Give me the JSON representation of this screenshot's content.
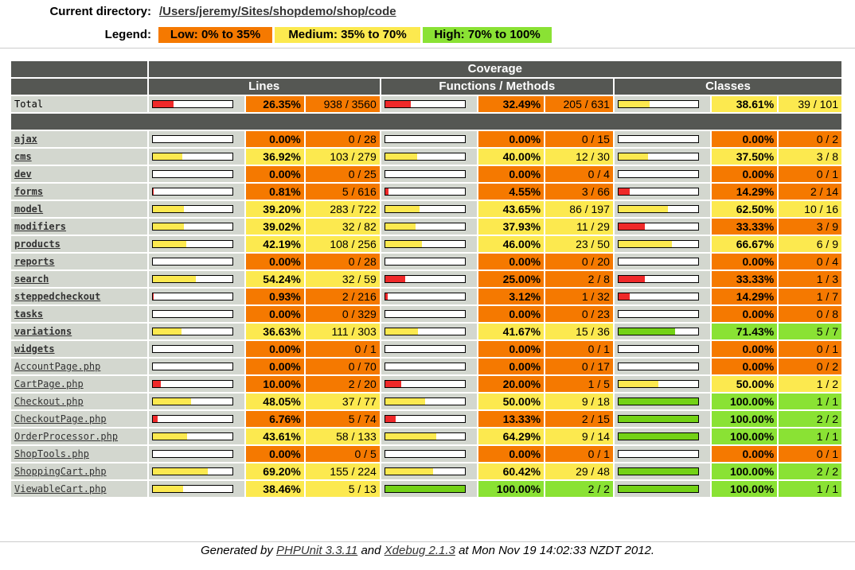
{
  "header": {
    "dir_label": "Current directory:",
    "dir_path": "/Users/jeremy/Sites/shopdemo/shop/code",
    "legend_label": "Legend:",
    "legend": [
      {
        "label": "Low: 0% to 35%",
        "level": "low"
      },
      {
        "label": "Medium: 35% to 70%",
        "level": "med"
      },
      {
        "label": "High: 70% to 100%",
        "level": "high"
      }
    ]
  },
  "columns": {
    "coverage": "Coverage",
    "lines": "Lines",
    "functions": "Functions / Methods",
    "classes": "Classes"
  },
  "colors": {
    "low": "#f57900",
    "medium": "#fce94f",
    "high": "#8ae234",
    "header": "#555753",
    "neutral": "#d3d7cf"
  },
  "total": {
    "name": "Total",
    "lines": {
      "pct": "26.35%",
      "count": "938 / 3560",
      "ratio": 0.2635
    },
    "functions": {
      "pct": "32.49%",
      "count": "205 / 631",
      "ratio": 0.3249
    },
    "classes": {
      "pct": "38.61%",
      "count": "39 / 101",
      "ratio": 0.3861
    }
  },
  "rows": [
    {
      "name": "ajax",
      "type": "dir",
      "lines": {
        "pct": "0.00%",
        "count": "0 / 28",
        "ratio": 0
      },
      "functions": {
        "pct": "0.00%",
        "count": "0 / 15",
        "ratio": 0
      },
      "classes": {
        "pct": "0.00%",
        "count": "0 / 2",
        "ratio": 0
      }
    },
    {
      "name": "cms",
      "type": "dir",
      "lines": {
        "pct": "36.92%",
        "count": "103 / 279",
        "ratio": 0.3692
      },
      "functions": {
        "pct": "40.00%",
        "count": "12 / 30",
        "ratio": 0.4
      },
      "classes": {
        "pct": "37.50%",
        "count": "3 / 8",
        "ratio": 0.375
      }
    },
    {
      "name": "dev",
      "type": "dir",
      "lines": {
        "pct": "0.00%",
        "count": "0 / 25",
        "ratio": 0
      },
      "functions": {
        "pct": "0.00%",
        "count": "0 / 4",
        "ratio": 0
      },
      "classes": {
        "pct": "0.00%",
        "count": "0 / 1",
        "ratio": 0
      }
    },
    {
      "name": "forms",
      "type": "dir",
      "lines": {
        "pct": "0.81%",
        "count": "5 / 616",
        "ratio": 0.0081
      },
      "functions": {
        "pct": "4.55%",
        "count": "3 / 66",
        "ratio": 0.0455
      },
      "classes": {
        "pct": "14.29%",
        "count": "2 / 14",
        "ratio": 0.1429
      }
    },
    {
      "name": "model",
      "type": "dir",
      "lines": {
        "pct": "39.20%",
        "count": "283 / 722",
        "ratio": 0.392
      },
      "functions": {
        "pct": "43.65%",
        "count": "86 / 197",
        "ratio": 0.4365
      },
      "classes": {
        "pct": "62.50%",
        "count": "10 / 16",
        "ratio": 0.625
      }
    },
    {
      "name": "modifiers",
      "type": "dir",
      "lines": {
        "pct": "39.02%",
        "count": "32 / 82",
        "ratio": 0.3902
      },
      "functions": {
        "pct": "37.93%",
        "count": "11 / 29",
        "ratio": 0.3793
      },
      "classes": {
        "pct": "33.33%",
        "count": "3 / 9",
        "ratio": 0.3333
      }
    },
    {
      "name": "products",
      "type": "dir",
      "lines": {
        "pct": "42.19%",
        "count": "108 / 256",
        "ratio": 0.4219
      },
      "functions": {
        "pct": "46.00%",
        "count": "23 / 50",
        "ratio": 0.46
      },
      "classes": {
        "pct": "66.67%",
        "count": "6 / 9",
        "ratio": 0.6667
      }
    },
    {
      "name": "reports",
      "type": "dir",
      "lines": {
        "pct": "0.00%",
        "count": "0 / 28",
        "ratio": 0
      },
      "functions": {
        "pct": "0.00%",
        "count": "0 / 20",
        "ratio": 0
      },
      "classes": {
        "pct": "0.00%",
        "count": "0 / 4",
        "ratio": 0
      }
    },
    {
      "name": "search",
      "type": "dir",
      "lines": {
        "pct": "54.24%",
        "count": "32 / 59",
        "ratio": 0.5424
      },
      "functions": {
        "pct": "25.00%",
        "count": "2 / 8",
        "ratio": 0.25
      },
      "classes": {
        "pct": "33.33%",
        "count": "1 / 3",
        "ratio": 0.3333
      }
    },
    {
      "name": "steppedcheckout",
      "type": "dir",
      "lines": {
        "pct": "0.93%",
        "count": "2 / 216",
        "ratio": 0.0093
      },
      "functions": {
        "pct": "3.12%",
        "count": "1 / 32",
        "ratio": 0.0312
      },
      "classes": {
        "pct": "14.29%",
        "count": "1 / 7",
        "ratio": 0.1429
      }
    },
    {
      "name": "tasks",
      "type": "dir",
      "lines": {
        "pct": "0.00%",
        "count": "0 / 329",
        "ratio": 0
      },
      "functions": {
        "pct": "0.00%",
        "count": "0 / 23",
        "ratio": 0
      },
      "classes": {
        "pct": "0.00%",
        "count": "0 / 8",
        "ratio": 0
      }
    },
    {
      "name": "variations",
      "type": "dir",
      "lines": {
        "pct": "36.63%",
        "count": "111 / 303",
        "ratio": 0.3663
      },
      "functions": {
        "pct": "41.67%",
        "count": "15 / 36",
        "ratio": 0.4167
      },
      "classes": {
        "pct": "71.43%",
        "count": "5 / 7",
        "ratio": 0.7143
      }
    },
    {
      "name": "widgets",
      "type": "dir",
      "lines": {
        "pct": "0.00%",
        "count": "0 / 1",
        "ratio": 0
      },
      "functions": {
        "pct": "0.00%",
        "count": "0 / 1",
        "ratio": 0
      },
      "classes": {
        "pct": "0.00%",
        "count": "0 / 1",
        "ratio": 0
      }
    },
    {
      "name": "AccountPage.php",
      "type": "file",
      "lines": {
        "pct": "0.00%",
        "count": "0 / 70",
        "ratio": 0
      },
      "functions": {
        "pct": "0.00%",
        "count": "0 / 17",
        "ratio": 0
      },
      "classes": {
        "pct": "0.00%",
        "count": "0 / 2",
        "ratio": 0
      }
    },
    {
      "name": "CartPage.php",
      "type": "file",
      "lines": {
        "pct": "10.00%",
        "count": "2 / 20",
        "ratio": 0.1
      },
      "functions": {
        "pct": "20.00%",
        "count": "1 / 5",
        "ratio": 0.2
      },
      "classes": {
        "pct": "50.00%",
        "count": "1 / 2",
        "ratio": 0.5
      }
    },
    {
      "name": "Checkout.php",
      "type": "file",
      "lines": {
        "pct": "48.05%",
        "count": "37 / 77",
        "ratio": 0.4805
      },
      "functions": {
        "pct": "50.00%",
        "count": "9 / 18",
        "ratio": 0.5
      },
      "classes": {
        "pct": "100.00%",
        "count": "1 / 1",
        "ratio": 1
      }
    },
    {
      "name": "CheckoutPage.php",
      "type": "file",
      "lines": {
        "pct": "6.76%",
        "count": "5 / 74",
        "ratio": 0.0676
      },
      "functions": {
        "pct": "13.33%",
        "count": "2 / 15",
        "ratio": 0.1333
      },
      "classes": {
        "pct": "100.00%",
        "count": "2 / 2",
        "ratio": 1
      }
    },
    {
      "name": "OrderProcessor.php",
      "type": "file",
      "lines": {
        "pct": "43.61%",
        "count": "58 / 133",
        "ratio": 0.4361
      },
      "functions": {
        "pct": "64.29%",
        "count": "9 / 14",
        "ratio": 0.6429
      },
      "classes": {
        "pct": "100.00%",
        "count": "1 / 1",
        "ratio": 1
      }
    },
    {
      "name": "ShopTools.php",
      "type": "file",
      "lines": {
        "pct": "0.00%",
        "count": "0 / 5",
        "ratio": 0
      },
      "functions": {
        "pct": "0.00%",
        "count": "0 / 1",
        "ratio": 0
      },
      "classes": {
        "pct": "0.00%",
        "count": "0 / 1",
        "ratio": 0
      }
    },
    {
      "name": "ShoppingCart.php",
      "type": "file",
      "lines": {
        "pct": "69.20%",
        "count": "155 / 224",
        "ratio": 0.692
      },
      "functions": {
        "pct": "60.42%",
        "count": "29 / 48",
        "ratio": 0.6042
      },
      "classes": {
        "pct": "100.00%",
        "count": "2 / 2",
        "ratio": 1
      }
    },
    {
      "name": "ViewableCart.php",
      "type": "file",
      "lines": {
        "pct": "38.46%",
        "count": "5 / 13",
        "ratio": 0.3846
      },
      "functions": {
        "pct": "100.00%",
        "count": "2 / 2",
        "ratio": 1
      },
      "classes": {
        "pct": "100.00%",
        "count": "1 / 1",
        "ratio": 1
      }
    }
  ],
  "footer": {
    "prefix": "Generated by ",
    "phpunit": "PHPUnit 3.3.11",
    "and": " and ",
    "xdebug": "Xdebug 2.1.3",
    "suffix": " at Mon Nov 19 14:02:33 NZDT 2012."
  }
}
